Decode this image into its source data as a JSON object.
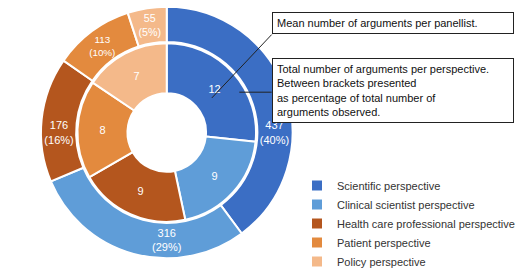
{
  "chart_data": {
    "type": "pie",
    "categories": [
      "Scientific perspective",
      "Clinical scientist perspective",
      "Health care professional perspective",
      "Patient perspective",
      "Policy perspective"
    ],
    "colors": [
      "#3b6ec4",
      "#5f9dd8",
      "#b4561e",
      "#e38a3e",
      "#f4b98a"
    ],
    "rings": [
      {
        "values": [
          437,
          316,
          176,
          113,
          55
        ],
        "value_labels": [
          "437 (40%)",
          "316 (29%)",
          "176 (16%)",
          "113 (10%)",
          "55 (5%)"
        ]
      },
      {
        "values": [
          12,
          9,
          9,
          8,
          7
        ]
      }
    ],
    "data_labels": true,
    "legend": "right",
    "annotations": [
      [
        "Mean number of arguments per panellist."
      ],
      [
        "Total number of arguments per perspective.",
        "Between brackets presented",
        "as percentage of total number of",
        "arguments observed."
      ]
    ]
  }
}
